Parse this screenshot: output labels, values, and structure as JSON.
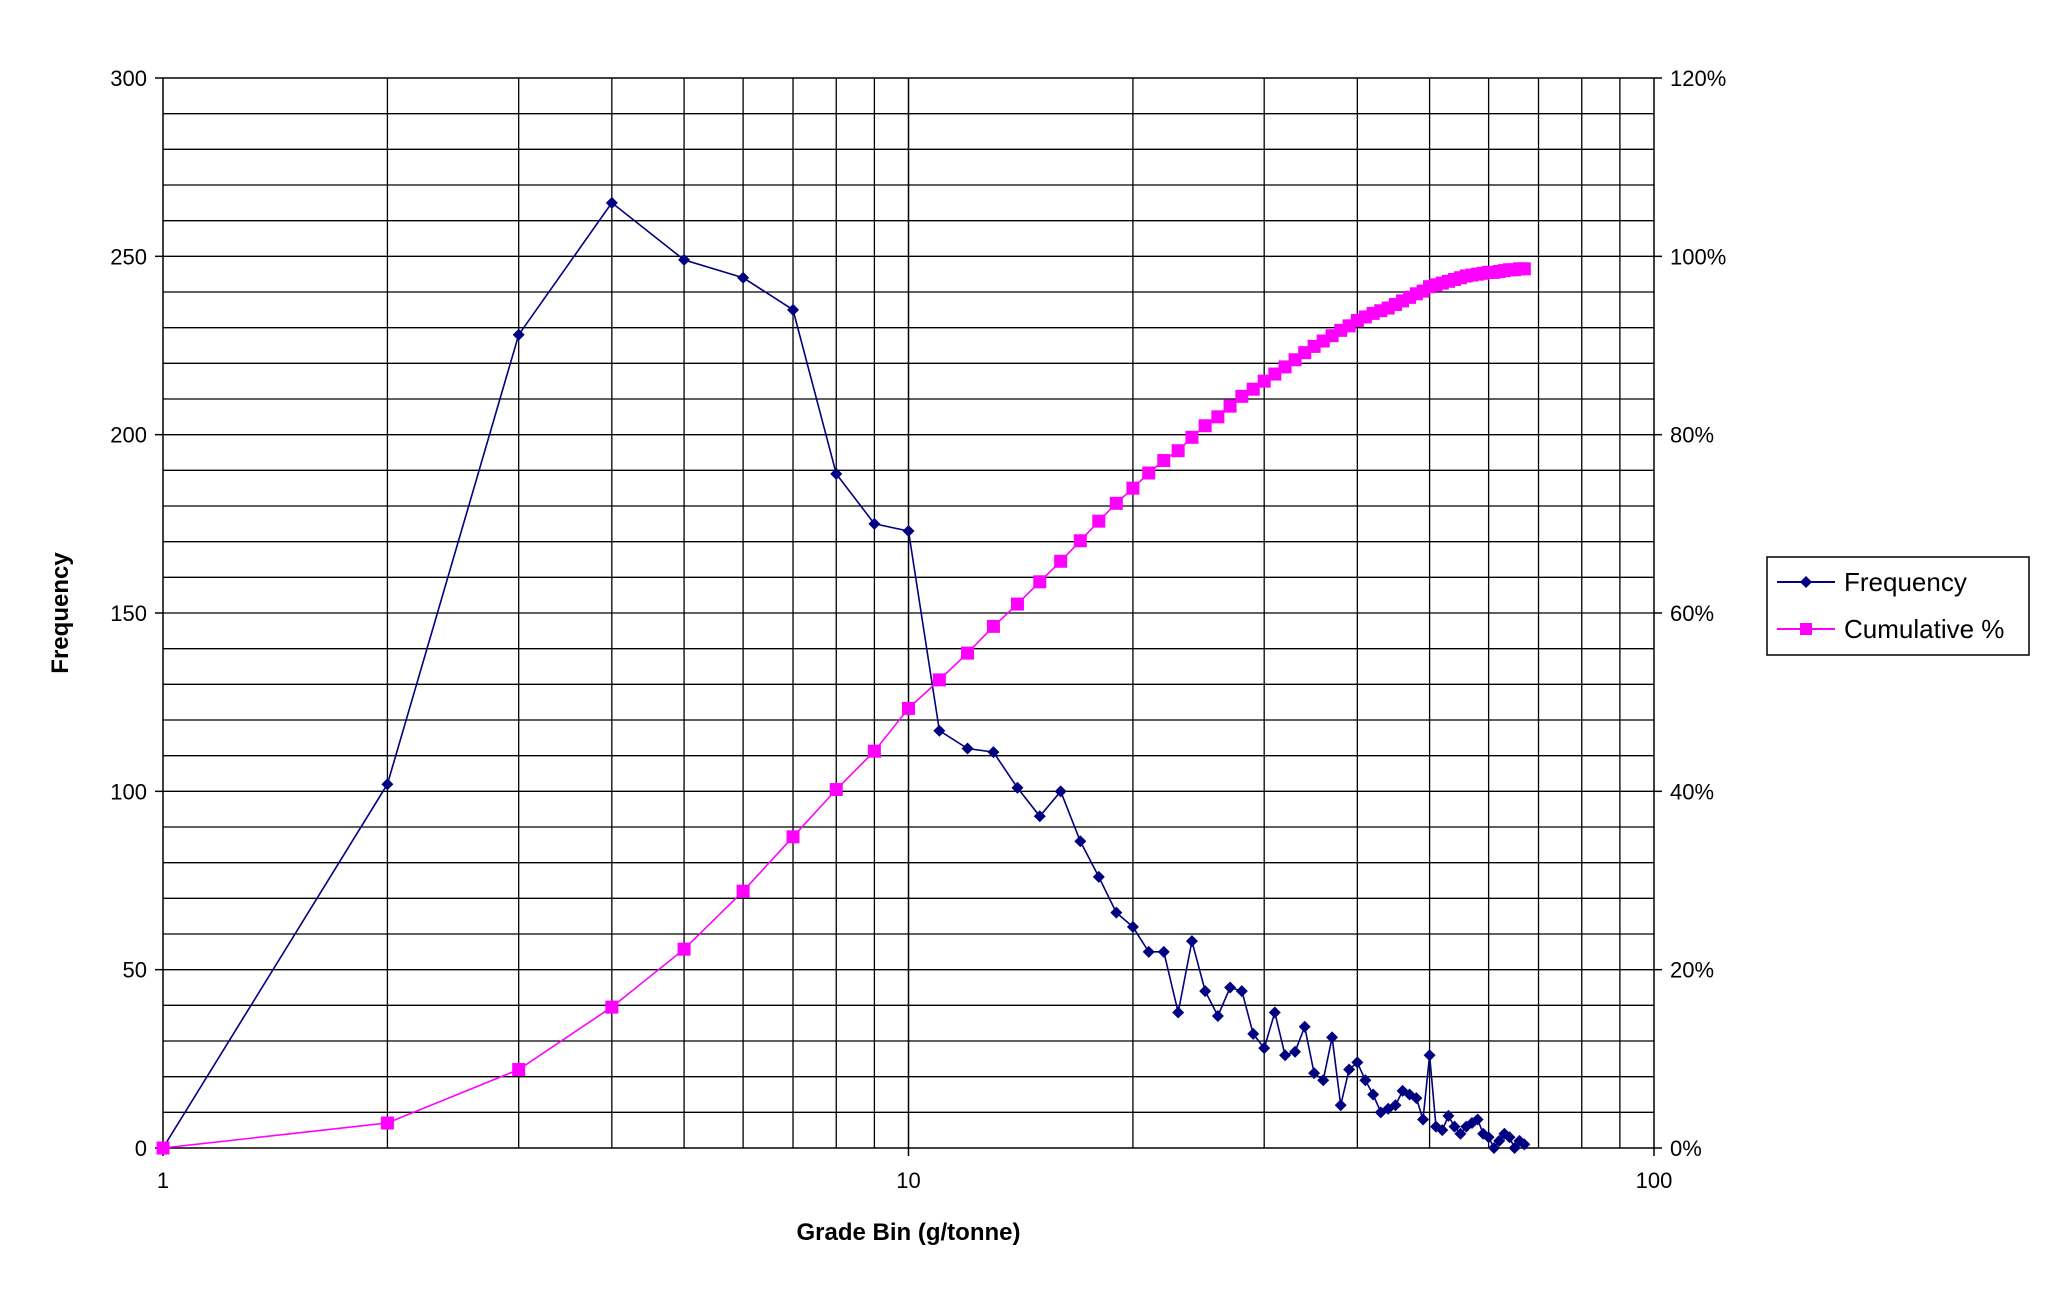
{
  "chart_data": {
    "type": "line",
    "x_scale": "log",
    "xlabel": "Grade Bin (g/tonne)",
    "ylabel": "Frequency",
    "xlim": [
      1,
      100
    ],
    "ylim": [
      0,
      300
    ],
    "y2lim": [
      0,
      1.2
    ],
    "x_ticks": [
      "1",
      "10",
      "100"
    ],
    "y_ticks": [
      "0",
      "50",
      "100",
      "150",
      "200",
      "250",
      "300"
    ],
    "y2_ticks": [
      "0%",
      "20%",
      "40%",
      "60%",
      "80%",
      "100%",
      "120%"
    ],
    "grid": true,
    "legend_position": "right",
    "colors": {
      "frequency": "#000080",
      "cumulative": "#ff00ff"
    },
    "series": [
      {
        "name": "Frequency",
        "axis": "left",
        "marker": "diamond",
        "points": [
          [
            1,
            0
          ],
          [
            2,
            102
          ],
          [
            3,
            228
          ],
          [
            4,
            265
          ],
          [
            5,
            249
          ],
          [
            6,
            244
          ],
          [
            7,
            235
          ],
          [
            8,
            189
          ],
          [
            9,
            175
          ],
          [
            10,
            173
          ],
          [
            11,
            117
          ],
          [
            12,
            112
          ],
          [
            13,
            111
          ],
          [
            14,
            101
          ],
          [
            15,
            93
          ],
          [
            16,
            100
          ],
          [
            17,
            86
          ],
          [
            18,
            76
          ],
          [
            19,
            66
          ],
          [
            20,
            62
          ],
          [
            21,
            55
          ],
          [
            22,
            55
          ],
          [
            23,
            38
          ],
          [
            24,
            58
          ],
          [
            25,
            44
          ],
          [
            26,
            37
          ],
          [
            27,
            45
          ],
          [
            28,
            44
          ],
          [
            29,
            32
          ],
          [
            30,
            28
          ],
          [
            31,
            38
          ],
          [
            32,
            26
          ],
          [
            33,
            27
          ],
          [
            34,
            34
          ],
          [
            35,
            21
          ],
          [
            36,
            19
          ],
          [
            37,
            31
          ],
          [
            38,
            12
          ],
          [
            39,
            22
          ],
          [
            40,
            24
          ],
          [
            41,
            19
          ],
          [
            42,
            15
          ],
          [
            43,
            10
          ],
          [
            44,
            11
          ],
          [
            45,
            12
          ],
          [
            46,
            16
          ],
          [
            47,
            15
          ],
          [
            48,
            14
          ],
          [
            49,
            8
          ],
          [
            50,
            26
          ],
          [
            51,
            6
          ],
          [
            52,
            5
          ],
          [
            53,
            9
          ],
          [
            54,
            6
          ],
          [
            55,
            4
          ],
          [
            56,
            6
          ],
          [
            57,
            7
          ],
          [
            58,
            8
          ],
          [
            59,
            4
          ],
          [
            60,
            3
          ],
          [
            61,
            0
          ],
          [
            62,
            2
          ],
          [
            63,
            4
          ],
          [
            64,
            3
          ],
          [
            65,
            0
          ],
          [
            66,
            2
          ],
          [
            67,
            1
          ]
        ]
      },
      {
        "name": "Cumulative %",
        "axis": "right",
        "marker": "square",
        "points": [
          [
            1,
            0
          ],
          [
            2,
            0.028
          ],
          [
            3,
            0.088
          ],
          [
            4,
            0.158
          ],
          [
            5,
            0.223
          ],
          [
            6,
            0.288
          ],
          [
            7,
            0.349
          ],
          [
            8,
            0.402
          ],
          [
            9,
            0.445
          ],
          [
            10,
            0.493
          ],
          [
            11,
            0.525
          ],
          [
            12,
            0.555
          ],
          [
            13,
            0.585
          ],
          [
            14,
            0.61
          ],
          [
            15,
            0.635
          ],
          [
            16,
            0.658
          ],
          [
            17,
            0.681
          ],
          [
            18,
            0.703
          ],
          [
            19,
            0.723
          ],
          [
            20,
            0.74
          ],
          [
            21,
            0.757
          ],
          [
            22,
            0.771
          ],
          [
            23,
            0.782
          ],
          [
            24,
            0.797
          ],
          [
            25,
            0.81
          ],
          [
            26,
            0.82
          ],
          [
            27,
            0.832
          ],
          [
            28,
            0.843
          ],
          [
            29,
            0.851
          ],
          [
            30,
            0.86
          ],
          [
            31,
            0.868
          ],
          [
            32,
            0.876
          ],
          [
            33,
            0.884
          ],
          [
            34,
            0.892
          ],
          [
            35,
            0.899
          ],
          [
            36,
            0.905
          ],
          [
            37,
            0.911
          ],
          [
            38,
            0.917
          ],
          [
            39,
            0.922
          ],
          [
            40,
            0.928
          ],
          [
            41,
            0.932
          ],
          [
            42,
            0.936
          ],
          [
            43,
            0.939
          ],
          [
            44,
            0.942
          ],
          [
            45,
            0.946
          ],
          [
            46,
            0.95
          ],
          [
            47,
            0.954
          ],
          [
            48,
            0.958
          ],
          [
            49,
            0.961
          ],
          [
            50,
            0.966
          ],
          [
            51,
            0.968
          ],
          [
            52,
            0.97
          ],
          [
            53,
            0.972
          ],
          [
            54,
            0.974
          ],
          [
            55,
            0.976
          ],
          [
            56,
            0.978
          ],
          [
            57,
            0.979
          ],
          [
            58,
            0.98
          ],
          [
            59,
            0.981
          ],
          [
            60,
            0.982
          ],
          [
            61,
            0.982
          ],
          [
            62,
            0.983
          ],
          [
            63,
            0.984
          ],
          [
            64,
            0.985
          ],
          [
            65,
            0.985
          ],
          [
            66,
            0.986
          ],
          [
            67,
            0.986
          ]
        ]
      }
    ]
  }
}
